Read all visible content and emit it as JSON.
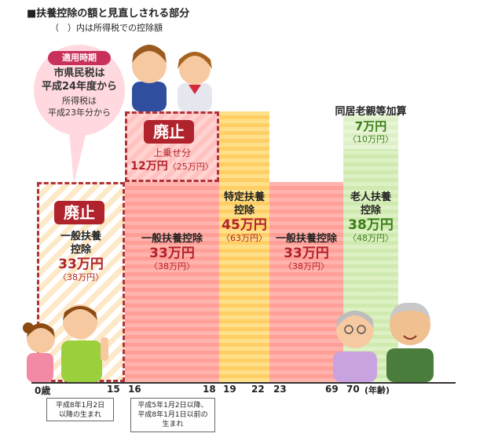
{
  "title": "■扶養控除の額と見直しされる部分",
  "subtitle": "（　）内は所得税での控除額",
  "bubble": {
    "head": "適用時期",
    "line1": "市県民税は",
    "line2": "平成24年度から",
    "line3": "所得税は",
    "line4": "平成23年分から"
  },
  "abolish_label": "廃止",
  "blocks": {
    "general_young": {
      "name1": "一般扶養",
      "name2": "控除",
      "amount": "33万円",
      "paren": "〈38万円〉"
    },
    "surcharge": {
      "name": "上乗せ分",
      "amount": "12万円",
      "paren": "〈25万円〉"
    },
    "general_16_18": {
      "name": "一般扶養控除",
      "amount": "33万円",
      "paren": "〈38万円〉"
    },
    "specific": {
      "name1": "特定扶養",
      "name2": "控除",
      "amount": "45万円",
      "paren": "〈63万円〉"
    },
    "general_23_69": {
      "name": "一般扶養控除",
      "amount": "33万円",
      "paren": "〈38万円〉"
    },
    "elderly": {
      "name1": "老人扶養",
      "name2": "控除",
      "amount": "38万円",
      "paren": "〈48万円〉"
    },
    "cohabit": {
      "name": "同居老親等加算",
      "amount": "7万円",
      "paren": "〈10万円〉"
    }
  },
  "axis_ticks": [
    "0歳",
    "15",
    "16",
    "18",
    "19",
    "22",
    "23",
    "69",
    "70",
    "(年齢)"
  ],
  "notes": {
    "left1": "平成8年1月2日",
    "left2": "以降の生まれ",
    "mid1": "平成5年1月2日以降、",
    "mid2": "平成8年1月1日以前の",
    "mid3": "生まれ"
  },
  "colors": {
    "accent_red": "#b0222c",
    "accent_green": "#3a7d18",
    "bubble_pink": "#ffd9df"
  }
}
